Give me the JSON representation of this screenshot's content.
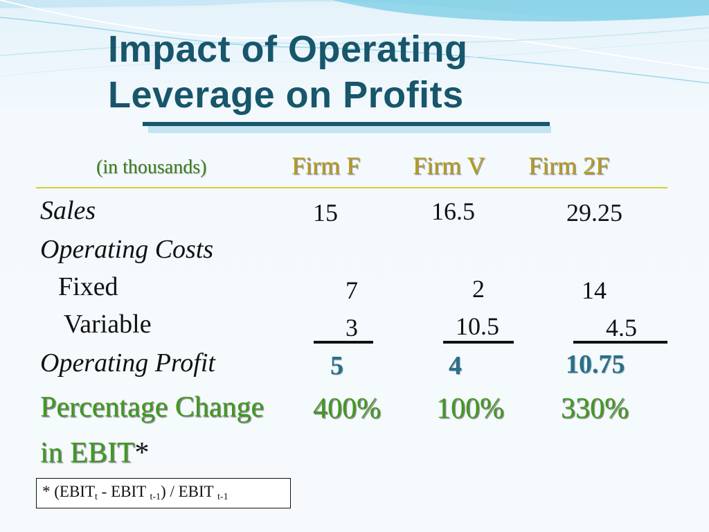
{
  "title_line1": "Impact of Operating",
  "title_line2": "Leverage on Profits",
  "units_label": "(in thousands)",
  "columns": [
    "Firm F",
    "Firm V",
    "Firm 2F"
  ],
  "rows": {
    "sales": {
      "label": "Sales",
      "values": [
        "15",
        "16.5",
        "29.25"
      ]
    },
    "operating_costs": {
      "label": "Operating Costs"
    },
    "fixed": {
      "label": "Fixed",
      "values": [
        "7",
        "2",
        "14"
      ]
    },
    "variable": {
      "label": "Variable",
      "values": [
        "3",
        "10.5",
        "4.5"
      ]
    },
    "operating_profit": {
      "label": "Operating Profit",
      "values": [
        "5",
        "4",
        "10.75"
      ]
    },
    "percentage_change": {
      "label_line1": "Percentage Change",
      "label_line2": "in EBIT",
      "asterisk": "*",
      "values": [
        "400%",
        "100%",
        "330%"
      ]
    }
  },
  "footnote": {
    "prefix": "* (EBIT",
    "sub_t": "t",
    "middle": " - EBIT ",
    "sub_t1a": "t-1",
    "after": ") / EBIT ",
    "sub_t1b": "t-1"
  },
  "colors": {
    "title": "#17566b",
    "header_gold": "#b79c1b",
    "green": "#3f9a1f",
    "profit_blue": "#2a6f88"
  }
}
